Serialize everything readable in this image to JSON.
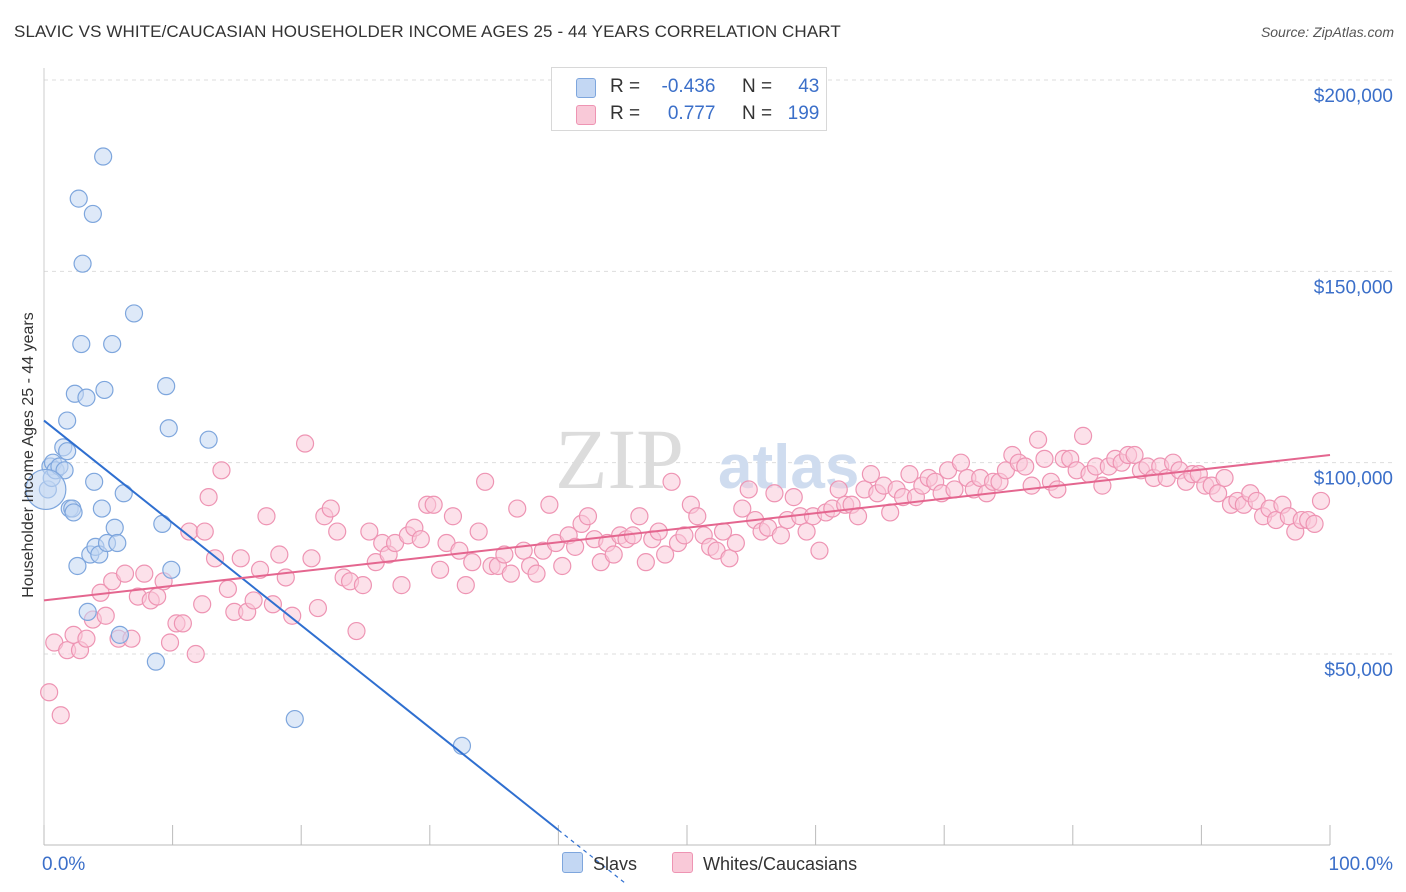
{
  "title": "SLAVIC VS WHITE/CAUCASIAN HOUSEHOLDER INCOME AGES 25 - 44 YEARS CORRELATION CHART",
  "source": "Source: ZipAtlas.com",
  "watermark": {
    "zip": "ZIP",
    "atlas": "atlas"
  },
  "legend": {
    "r_label": "R =",
    "n_label": "N =",
    "rows": [
      {
        "series": "Slavs",
        "r": "-0.436",
        "n": "43"
      },
      {
        "series": "Whites/Caucasians",
        "r": "0.777",
        "n": "199"
      }
    ]
  },
  "colors": {
    "slavs_fill": "#c3d7f3",
    "slavs_stroke": "#7ea6dd",
    "slavs_line": "#2f6fd0",
    "whites_fill": "#f9c9d8",
    "whites_stroke": "#ee94b3",
    "whites_line": "#e4668f",
    "axis_label": "#3b6fc9",
    "grid": "#dddddd"
  },
  "chart_data": {
    "type": "scatter",
    "title": "SLAVIC VS WHITE/CAUCASIAN HOUSEHOLDER INCOME AGES 25 - 44 YEARS CORRELATION CHART",
    "xlabel": "",
    "ylabel": "Householder Income Ages 25 - 44 years",
    "xlim": [
      0,
      100
    ],
    "ylim": [
      0,
      210000
    ],
    "x_tick_labels": [
      "0.0%",
      "100.0%"
    ],
    "y_ticks": [
      50000,
      100000,
      150000,
      200000
    ],
    "y_tick_labels": [
      "$50,000",
      "$100,000",
      "$150,000",
      "$200,000"
    ],
    "legend_position": "top-center",
    "series": [
      {
        "name": "Slavs",
        "r": -0.436,
        "n": 43,
        "trend": {
          "x0": 0,
          "y0": 111000,
          "x1": 40,
          "y1": 4000,
          "solid_until_x": 40,
          "dashed_until_x": 45.2
        },
        "points": [
          [
            0.3,
            93000
          ],
          [
            0.5,
            99000
          ],
          [
            0.6,
            96000
          ],
          [
            0.7,
            100000
          ],
          [
            0.9,
            98000
          ],
          [
            1.2,
            99000
          ],
          [
            1.5,
            104000
          ],
          [
            1.6,
            98000
          ],
          [
            1.8,
            103000
          ],
          [
            1.8,
            111000
          ],
          [
            2.0,
            88000
          ],
          [
            2.2,
            88000
          ],
          [
            2.3,
            87000
          ],
          [
            2.4,
            118000
          ],
          [
            2.6,
            73000
          ],
          [
            2.7,
            169000
          ],
          [
            2.9,
            131000
          ],
          [
            3.0,
            152000
          ],
          [
            3.3,
            117000
          ],
          [
            3.4,
            61000
          ],
          [
            3.6,
            76000
          ],
          [
            3.8,
            165000
          ],
          [
            3.9,
            95000
          ],
          [
            4.0,
            78000
          ],
          [
            4.3,
            76000
          ],
          [
            4.6,
            180000
          ],
          [
            4.7,
            119000
          ],
          [
            4.9,
            79000
          ],
          [
            5.3,
            131000
          ],
          [
            5.5,
            83000
          ],
          [
            5.7,
            79000
          ],
          [
            5.9,
            55000
          ],
          [
            6.2,
            92000
          ],
          [
            7.0,
            139000
          ],
          [
            8.7,
            48000
          ],
          [
            9.2,
            84000
          ],
          [
            9.5,
            120000
          ],
          [
            9.7,
            109000
          ],
          [
            9.9,
            72000
          ],
          [
            12.8,
            106000
          ],
          [
            19.5,
            33000
          ],
          [
            32.5,
            26000
          ],
          [
            4.5,
            88000
          ]
        ]
      },
      {
        "name": "Whites/Caucasians",
        "r": 0.777,
        "n": 199,
        "trend": {
          "x0": 0,
          "y0": 64000,
          "x1": 100,
          "y1": 102000
        },
        "points": [
          [
            0.4,
            40000
          ],
          [
            0.8,
            53000
          ],
          [
            1.3,
            34000
          ],
          [
            1.8,
            51000
          ],
          [
            2.3,
            55000
          ],
          [
            2.8,
            51000
          ],
          [
            3.3,
            54000
          ],
          [
            3.8,
            59000
          ],
          [
            4.4,
            66000
          ],
          [
            4.8,
            60000
          ],
          [
            5.3,
            69000
          ],
          [
            5.8,
            54000
          ],
          [
            6.3,
            71000
          ],
          [
            6.8,
            54000
          ],
          [
            7.3,
            65000
          ],
          [
            7.8,
            71000
          ],
          [
            8.3,
            64000
          ],
          [
            8.8,
            65000
          ],
          [
            9.3,
            69000
          ],
          [
            9.8,
            53000
          ],
          [
            10.3,
            58000
          ],
          [
            10.8,
            58000
          ],
          [
            11.3,
            82000
          ],
          [
            11.8,
            50000
          ],
          [
            12.3,
            63000
          ],
          [
            12.8,
            91000
          ],
          [
            13.3,
            75000
          ],
          [
            13.8,
            98000
          ],
          [
            14.3,
            67000
          ],
          [
            14.8,
            61000
          ],
          [
            15.3,
            75000
          ],
          [
            15.8,
            61000
          ],
          [
            16.3,
            64000
          ],
          [
            16.8,
            72000
          ],
          [
            17.3,
            86000
          ],
          [
            17.8,
            63000
          ],
          [
            18.3,
            76000
          ],
          [
            18.8,
            70000
          ],
          [
            19.3,
            60000
          ],
          [
            20.3,
            105000
          ],
          [
            20.8,
            75000
          ],
          [
            21.3,
            62000
          ],
          [
            21.8,
            86000
          ],
          [
            22.3,
            88000
          ],
          [
            22.8,
            82000
          ],
          [
            23.3,
            70000
          ],
          [
            23.8,
            69000
          ],
          [
            24.3,
            56000
          ],
          [
            24.8,
            68000
          ],
          [
            25.3,
            82000
          ],
          [
            25.8,
            74000
          ],
          [
            26.3,
            79000
          ],
          [
            26.8,
            76000
          ],
          [
            27.3,
            79000
          ],
          [
            27.8,
            68000
          ],
          [
            28.3,
            81000
          ],
          [
            28.8,
            83000
          ],
          [
            29.3,
            80000
          ],
          [
            29.8,
            89000
          ],
          [
            30.3,
            89000
          ],
          [
            30.8,
            72000
          ],
          [
            31.3,
            79000
          ],
          [
            31.8,
            86000
          ],
          [
            32.3,
            77000
          ],
          [
            32.8,
            68000
          ],
          [
            33.3,
            74000
          ],
          [
            33.8,
            82000
          ],
          [
            34.3,
            95000
          ],
          [
            34.8,
            73000
          ],
          [
            35.3,
            73000
          ],
          [
            35.8,
            76000
          ],
          [
            36.3,
            71000
          ],
          [
            36.8,
            88000
          ],
          [
            37.3,
            77000
          ],
          [
            37.8,
            73000
          ],
          [
            38.3,
            71000
          ],
          [
            38.8,
            77000
          ],
          [
            39.3,
            89000
          ],
          [
            39.8,
            79000
          ],
          [
            40.3,
            73000
          ],
          [
            40.8,
            81000
          ],
          [
            41.3,
            78000
          ],
          [
            41.8,
            84000
          ],
          [
            42.3,
            86000
          ],
          [
            42.8,
            80000
          ],
          [
            43.3,
            74000
          ],
          [
            43.8,
            79000
          ],
          [
            44.3,
            76000
          ],
          [
            44.8,
            81000
          ],
          [
            45.3,
            80000
          ],
          [
            45.8,
            81000
          ],
          [
            46.3,
            86000
          ],
          [
            46.8,
            74000
          ],
          [
            47.3,
            80000
          ],
          [
            47.8,
            82000
          ],
          [
            48.3,
            76000
          ],
          [
            48.8,
            95000
          ],
          [
            49.3,
            79000
          ],
          [
            49.8,
            81000
          ],
          [
            50.3,
            89000
          ],
          [
            50.8,
            86000
          ],
          [
            51.3,
            81000
          ],
          [
            51.8,
            78000
          ],
          [
            52.3,
            77000
          ],
          [
            52.8,
            82000
          ],
          [
            53.3,
            75000
          ],
          [
            53.8,
            79000
          ],
          [
            54.3,
            88000
          ],
          [
            54.8,
            93000
          ],
          [
            55.3,
            85000
          ],
          [
            55.8,
            82000
          ],
          [
            56.3,
            83000
          ],
          [
            56.8,
            92000
          ],
          [
            57.3,
            81000
          ],
          [
            57.8,
            85000
          ],
          [
            58.3,
            91000
          ],
          [
            58.8,
            86000
          ],
          [
            59.3,
            82000
          ],
          [
            59.8,
            86000
          ],
          [
            60.3,
            77000
          ],
          [
            60.8,
            87000
          ],
          [
            61.3,
            88000
          ],
          [
            61.8,
            93000
          ],
          [
            62.3,
            89000
          ],
          [
            62.8,
            89000
          ],
          [
            63.3,
            86000
          ],
          [
            63.8,
            93000
          ],
          [
            64.3,
            97000
          ],
          [
            64.8,
            92000
          ],
          [
            65.3,
            94000
          ],
          [
            65.8,
            87000
          ],
          [
            66.3,
            93000
          ],
          [
            66.8,
            91000
          ],
          [
            67.3,
            97000
          ],
          [
            67.8,
            91000
          ],
          [
            68.3,
            94000
          ],
          [
            68.8,
            96000
          ],
          [
            69.3,
            95000
          ],
          [
            69.8,
            92000
          ],
          [
            70.3,
            98000
          ],
          [
            70.8,
            93000
          ],
          [
            71.3,
            100000
          ],
          [
            71.8,
            96000
          ],
          [
            72.3,
            93000
          ],
          [
            72.8,
            96000
          ],
          [
            73.3,
            92000
          ],
          [
            73.8,
            95000
          ],
          [
            74.3,
            95000
          ],
          [
            74.8,
            98000
          ],
          [
            75.3,
            102000
          ],
          [
            75.8,
            100000
          ],
          [
            76.3,
            99000
          ],
          [
            76.8,
            94000
          ],
          [
            77.3,
            106000
          ],
          [
            77.8,
            101000
          ],
          [
            78.3,
            95000
          ],
          [
            78.8,
            93000
          ],
          [
            79.3,
            101000
          ],
          [
            79.8,
            101000
          ],
          [
            80.3,
            98000
          ],
          [
            80.8,
            107000
          ],
          [
            81.3,
            97000
          ],
          [
            81.8,
            99000
          ],
          [
            82.3,
            94000
          ],
          [
            82.8,
            99000
          ],
          [
            83.3,
            101000
          ],
          [
            83.8,
            100000
          ],
          [
            84.3,
            102000
          ],
          [
            84.8,
            102000
          ],
          [
            85.3,
            98000
          ],
          [
            85.8,
            99000
          ],
          [
            86.3,
            96000
          ],
          [
            86.8,
            99000
          ],
          [
            87.3,
            96000
          ],
          [
            87.8,
            100000
          ],
          [
            88.3,
            98000
          ],
          [
            88.8,
            95000
          ],
          [
            89.3,
            97000
          ],
          [
            89.8,
            97000
          ],
          [
            90.3,
            94000
          ],
          [
            90.8,
            94000
          ],
          [
            91.3,
            92000
          ],
          [
            91.8,
            96000
          ],
          [
            92.3,
            89000
          ],
          [
            92.8,
            90000
          ],
          [
            93.3,
            89000
          ],
          [
            93.8,
            92000
          ],
          [
            94.3,
            90000
          ],
          [
            94.8,
            86000
          ],
          [
            95.3,
            88000
          ],
          [
            95.8,
            85000
          ],
          [
            96.3,
            89000
          ],
          [
            96.8,
            86000
          ],
          [
            97.3,
            82000
          ],
          [
            97.8,
            85000
          ],
          [
            98.3,
            85000
          ],
          [
            98.8,
            84000
          ],
          [
            99.3,
            90000
          ],
          [
            12.5,
            82000
          ]
        ]
      }
    ]
  }
}
